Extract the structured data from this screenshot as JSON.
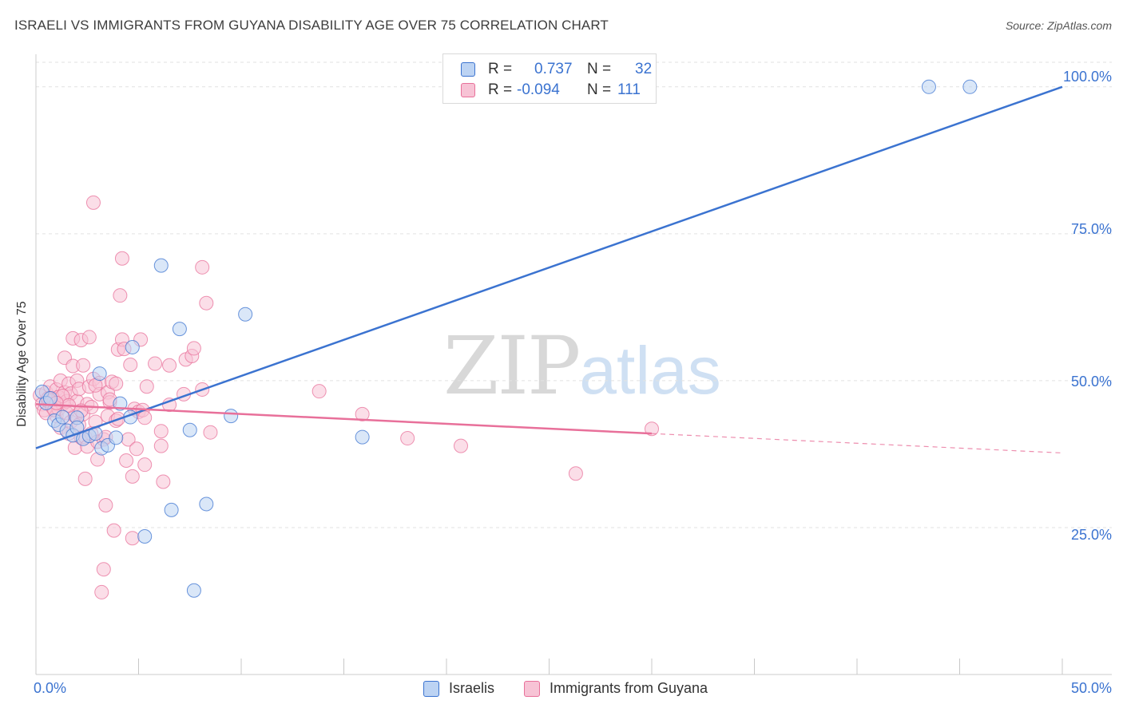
{
  "header": {
    "title": "ISRAELI VS IMMIGRANTS FROM GUYANA DISABILITY AGE OVER 75 CORRELATION CHART",
    "source": "Source: ZipAtlas.com"
  },
  "watermark": {
    "zip": "ZIP",
    "atlas": "atlas"
  },
  "legend_top": {
    "rows": [
      {
        "r_label": "R =",
        "r_value": "0.737",
        "n_label": "N =",
        "n_value": "32"
      },
      {
        "r_label": "R =",
        "r_value": "-0.094",
        "n_label": "N =",
        "n_value": "111"
      }
    ]
  },
  "chart_data": {
    "type": "scatter",
    "title": "ISRAELI VS IMMIGRANTS FROM GUYANA DISABILITY AGE OVER 75 CORRELATION CHART",
    "xlabel": "",
    "ylabel": "Disability Age Over 75",
    "xlim": [
      0,
      50
    ],
    "ylim": [
      0,
      105
    ],
    "x_tick_labels": [
      "0.0%",
      "50.0%"
    ],
    "y_tick_labels": [
      "25.0%",
      "50.0%",
      "75.0%",
      "100.0%"
    ],
    "y_ticks": [
      25,
      50,
      75,
      100
    ],
    "grid": true,
    "colors": {
      "israelis": "#3b73d0",
      "israelis_fill": "#bcd3f3",
      "guyana": "#e8709a",
      "guyana_fill": "#f7c3d5",
      "grid": "#e2e2e2"
    },
    "series": [
      {
        "name": "Israelis",
        "r": 0.737,
        "n": 32,
        "trend": {
          "x": [
            0,
            50
          ],
          "y": [
            38.5,
            100
          ]
        },
        "points": [
          [
            0.3,
            48.1
          ],
          [
            0.5,
            46.2
          ],
          [
            0.7,
            47.0
          ],
          [
            0.9,
            43.2
          ],
          [
            1.1,
            42.5
          ],
          [
            1.3,
            43.8
          ],
          [
            1.5,
            41.5
          ],
          [
            1.8,
            40.7
          ],
          [
            2.0,
            43.7
          ],
          [
            2.3,
            40.1
          ],
          [
            2.6,
            40.6
          ],
          [
            3.2,
            38.5
          ],
          [
            3.5,
            39.0
          ],
          [
            3.9,
            40.3
          ],
          [
            4.1,
            46.1
          ],
          [
            4.6,
            43.8
          ],
          [
            4.7,
            55.7
          ],
          [
            2.0,
            42.0
          ],
          [
            3.1,
            51.2
          ],
          [
            6.1,
            69.6
          ],
          [
            6.6,
            28.0
          ],
          [
            7.0,
            58.8
          ],
          [
            7.5,
            41.6
          ],
          [
            7.7,
            14.3
          ],
          [
            8.3,
            29.0
          ],
          [
            9.5,
            44.0
          ],
          [
            10.2,
            61.3
          ],
          [
            15.9,
            40.4
          ],
          [
            43.5,
            100.0
          ],
          [
            45.5,
            100.0
          ],
          [
            5.3,
            23.5
          ],
          [
            2.9,
            41.0
          ]
        ]
      },
      {
        "name": "Immigrants from Guyana",
        "r": -0.094,
        "n": 111,
        "trend": {
          "x": [
            0,
            30
          ],
          "y": [
            46.0,
            41.0
          ]
        },
        "trend_dashed": {
          "x": [
            30,
            50
          ],
          "y": [
            41.0,
            37.7
          ]
        },
        "points": [
          [
            0.2,
            47.5
          ],
          [
            0.3,
            46.0
          ],
          [
            0.4,
            45.0
          ],
          [
            0.5,
            48.0
          ],
          [
            0.5,
            44.5
          ],
          [
            0.6,
            46.5
          ],
          [
            0.7,
            49.0
          ],
          [
            0.8,
            47.0
          ],
          [
            0.8,
            45.5
          ],
          [
            0.9,
            46.8
          ],
          [
            1.0,
            48.5
          ],
          [
            1.0,
            44.0
          ],
          [
            1.1,
            47.2
          ],
          [
            1.1,
            45.2
          ],
          [
            1.2,
            50.0
          ],
          [
            1.2,
            42.0
          ],
          [
            1.3,
            46.0
          ],
          [
            1.4,
            48.0
          ],
          [
            1.4,
            53.9
          ],
          [
            1.5,
            44.5
          ],
          [
            1.5,
            46.5
          ],
          [
            1.6,
            49.5
          ],
          [
            1.6,
            41.0
          ],
          [
            1.7,
            43.0
          ],
          [
            1.7,
            47.8
          ],
          [
            1.8,
            52.5
          ],
          [
            1.8,
            57.2
          ],
          [
            1.9,
            38.6
          ],
          [
            1.9,
            44.0
          ],
          [
            2.0,
            50.0
          ],
          [
            2.0,
            46.5
          ],
          [
            2.1,
            42.5
          ],
          [
            2.1,
            48.6
          ],
          [
            2.2,
            56.9
          ],
          [
            2.2,
            40.3
          ],
          [
            2.3,
            44.3
          ],
          [
            2.3,
            52.6
          ],
          [
            2.4,
            33.3
          ],
          [
            2.4,
            40.4
          ],
          [
            2.5,
            46.0
          ],
          [
            2.5,
            38.8
          ],
          [
            2.6,
            57.4
          ],
          [
            2.6,
            49.0
          ],
          [
            2.7,
            41.0
          ],
          [
            2.7,
            45.5
          ],
          [
            2.8,
            50.3
          ],
          [
            2.8,
            80.3
          ],
          [
            2.9,
            43.0
          ],
          [
            3.0,
            39.6
          ],
          [
            3.0,
            36.6
          ],
          [
            3.1,
            49.6
          ],
          [
            3.1,
            47.7
          ],
          [
            3.2,
            14.0
          ],
          [
            3.3,
            17.9
          ],
          [
            3.3,
            40.0
          ],
          [
            3.4,
            28.8
          ],
          [
            3.5,
            48.0
          ],
          [
            3.5,
            44.0
          ],
          [
            3.6,
            46.3
          ],
          [
            3.7,
            49.8
          ],
          [
            3.8,
            24.5
          ],
          [
            3.9,
            43.2
          ],
          [
            3.9,
            49.5
          ],
          [
            4.0,
            55.3
          ],
          [
            4.1,
            64.5
          ],
          [
            4.2,
            57.0
          ],
          [
            4.2,
            70.8
          ],
          [
            4.3,
            55.4
          ],
          [
            4.4,
            36.4
          ],
          [
            4.5,
            40.0
          ],
          [
            4.6,
            52.7
          ],
          [
            4.7,
            23.2
          ],
          [
            4.7,
            33.7
          ],
          [
            4.8,
            45.2
          ],
          [
            4.9,
            38.4
          ],
          [
            5.0,
            44.7
          ],
          [
            5.1,
            57.0
          ],
          [
            5.2,
            45.0
          ],
          [
            5.3,
            43.7
          ],
          [
            5.3,
            35.7
          ],
          [
            5.4,
            49.0
          ],
          [
            5.8,
            52.9
          ],
          [
            6.1,
            41.4
          ],
          [
            6.1,
            38.9
          ],
          [
            6.2,
            32.8
          ],
          [
            6.5,
            45.9
          ],
          [
            6.5,
            52.6
          ],
          [
            7.2,
            47.7
          ],
          [
            7.3,
            53.6
          ],
          [
            7.6,
            54.2
          ],
          [
            7.7,
            55.5
          ],
          [
            8.1,
            69.3
          ],
          [
            8.1,
            48.5
          ],
          [
            8.3,
            63.2
          ],
          [
            8.5,
            41.2
          ],
          [
            13.8,
            48.2
          ],
          [
            15.9,
            44.3
          ],
          [
            18.1,
            40.2
          ],
          [
            20.7,
            38.9
          ],
          [
            26.3,
            34.2
          ],
          [
            30.0,
            41.8
          ],
          [
            1.3,
            47.4
          ],
          [
            0.9,
            45.0
          ],
          [
            2.9,
            49.2
          ],
          [
            1.6,
            45.8
          ],
          [
            3.6,
            46.8
          ],
          [
            0.6,
            47.0
          ],
          [
            2.2,
            44.9
          ],
          [
            1.0,
            46.2
          ],
          [
            4.0,
            43.5
          ],
          [
            3.4,
            40.4
          ]
        ]
      }
    ]
  },
  "legend_bottom": {
    "items": [
      {
        "label": "Israelis"
      },
      {
        "label": "Immigrants from Guyana"
      }
    ]
  }
}
